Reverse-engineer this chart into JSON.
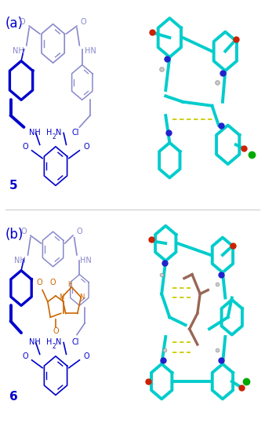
{
  "figsize": [
    3.38,
    5.39
  ],
  "dpi": 100,
  "background": "#ffffff",
  "panel_a_label": "(a)",
  "panel_b_label": "(b)",
  "compound_5_label": "5",
  "compound_6_label": "6",
  "label_fontsize": 11,
  "compound_label_fontsize": 11,
  "panel_label_fontsize": 12,
  "dark_blue": "#0000cd",
  "mid_blue": "#4444aa",
  "light_blue": "#8888cc",
  "orange": "#cc6600",
  "teal": "#00cccc",
  "red": "#cc2200",
  "green": "#00aa00",
  "white": "#ffffff",
  "gray": "#888888",
  "yellow": "#cccc00"
}
